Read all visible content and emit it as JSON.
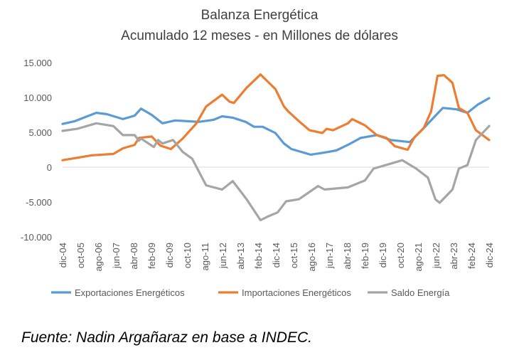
{
  "chart_data": {
    "type": "line",
    "title": "Balanza Energética",
    "subtitle": "Acumulado 12 meses - en Millones de dólares",
    "xlabel": "",
    "ylabel": "",
    "ylim": [
      -10000,
      15000
    ],
    "xlim": [
      2004.92,
      2024.92
    ],
    "yticks": [
      {
        "v": 15000,
        "label": "15.000"
      },
      {
        "v": 10000,
        "label": "10.000"
      },
      {
        "v": 5000,
        "label": "5.000"
      },
      {
        "v": 0,
        "label": "0"
      },
      {
        "v": -5000,
        "label": "-5.000"
      },
      {
        "v": -10000,
        "label": "-10.000"
      }
    ],
    "xtick_labels": [
      "dic-04",
      "oct-05",
      "ago-06",
      "jun-07",
      "abr-08",
      "feb-09",
      "dic-09",
      "oct-10",
      "ago-11",
      "jun-12",
      "abr-13",
      "feb-14",
      "dic-14",
      "oct-15",
      "ago-16",
      "jun-17",
      "abr-18",
      "feb-19",
      "dic-19",
      "oct-20",
      "ago-21",
      "jun-22",
      "abr-23",
      "feb-24",
      "dic-24"
    ],
    "grid": false,
    "legend_position": "bottom",
    "series": [
      {
        "name": "Exportaciones Energéticos",
        "color": "#5B9BD5",
        "points": [
          [
            2004.92,
            6200
          ],
          [
            2005.5,
            6600
          ],
          [
            2006.0,
            7200
          ],
          [
            2006.5,
            7800
          ],
          [
            2007.0,
            7600
          ],
          [
            2007.75,
            6900
          ],
          [
            2008.3,
            7400
          ],
          [
            2008.6,
            8400
          ],
          [
            2009.1,
            7500
          ],
          [
            2009.6,
            6300
          ],
          [
            2010.2,
            6700
          ],
          [
            2011.3,
            6500
          ],
          [
            2012.0,
            6800
          ],
          [
            2012.4,
            7300
          ],
          [
            2012.9,
            7100
          ],
          [
            2013.5,
            6500
          ],
          [
            2013.9,
            5800
          ],
          [
            2014.3,
            5800
          ],
          [
            2014.9,
            4900
          ],
          [
            2015.3,
            3400
          ],
          [
            2015.65,
            2600
          ],
          [
            2016.55,
            1800
          ],
          [
            2017.2,
            2100
          ],
          [
            2017.75,
            2400
          ],
          [
            2018.3,
            3200
          ],
          [
            2018.9,
            4200
          ],
          [
            2019.65,
            4600
          ],
          [
            2020.3,
            3900
          ],
          [
            2021.2,
            3600
          ],
          [
            2021.85,
            5600
          ],
          [
            2022.75,
            8500
          ],
          [
            2023.4,
            8300
          ],
          [
            2023.9,
            7800
          ],
          [
            2024.4,
            9000
          ],
          [
            2024.92,
            9900
          ]
        ]
      },
      {
        "name": "Importaciones Energéticos",
        "color": "#ED7D31",
        "points": [
          [
            2004.92,
            1000
          ],
          [
            2005.5,
            1300
          ],
          [
            2006.3,
            1700
          ],
          [
            2007.3,
            1900
          ],
          [
            2007.75,
            2700
          ],
          [
            2008.3,
            3200
          ],
          [
            2008.5,
            4200
          ],
          [
            2009.1,
            4400
          ],
          [
            2009.5,
            3100
          ],
          [
            2010.0,
            2600
          ],
          [
            2010.55,
            4100
          ],
          [
            2011.2,
            6300
          ],
          [
            2011.65,
            8700
          ],
          [
            2012.4,
            10400
          ],
          [
            2012.75,
            9400
          ],
          [
            2012.95,
            9200
          ],
          [
            2013.55,
            11400
          ],
          [
            2014.2,
            13300
          ],
          [
            2014.9,
            11200
          ],
          [
            2015.3,
            8700
          ],
          [
            2015.5,
            8000
          ],
          [
            2016.0,
            6600
          ],
          [
            2016.5,
            5300
          ],
          [
            2017.1,
            4900
          ],
          [
            2017.3,
            5500
          ],
          [
            2017.6,
            5300
          ],
          [
            2018.3,
            6300
          ],
          [
            2018.5,
            6900
          ],
          [
            2019.1,
            6000
          ],
          [
            2019.65,
            4600
          ],
          [
            2020.1,
            4200
          ],
          [
            2020.5,
            3000
          ],
          [
            2021.1,
            2500
          ],
          [
            2021.4,
            4200
          ],
          [
            2021.85,
            5600
          ],
          [
            2022.2,
            8000
          ],
          [
            2022.5,
            13100
          ],
          [
            2022.8,
            13200
          ],
          [
            2023.2,
            12100
          ],
          [
            2023.5,
            8500
          ],
          [
            2023.9,
            7800
          ],
          [
            2024.3,
            5300
          ],
          [
            2024.92,
            3900
          ]
        ]
      },
      {
        "name": "Saldo Energía",
        "color": "#A5A5A5",
        "points": [
          [
            2004.92,
            5200
          ],
          [
            2005.6,
            5500
          ],
          [
            2006.5,
            6300
          ],
          [
            2007.3,
            5900
          ],
          [
            2007.75,
            4600
          ],
          [
            2008.3,
            4600
          ],
          [
            2008.5,
            3800
          ],
          [
            2008.6,
            4100
          ],
          [
            2009.2,
            2900
          ],
          [
            2009.4,
            3900
          ],
          [
            2009.6,
            3400
          ],
          [
            2010.1,
            3900
          ],
          [
            2010.55,
            2200
          ],
          [
            2011.0,
            1200
          ],
          [
            2011.65,
            -2600
          ],
          [
            2012.4,
            -3200
          ],
          [
            2012.9,
            -2000
          ],
          [
            2013.55,
            -4600
          ],
          [
            2014.2,
            -7600
          ],
          [
            2014.6,
            -7000
          ],
          [
            2015.0,
            -6500
          ],
          [
            2015.4,
            -4900
          ],
          [
            2016.0,
            -4600
          ],
          [
            2016.9,
            -2700
          ],
          [
            2017.2,
            -3200
          ],
          [
            2018.3,
            -2900
          ],
          [
            2019.1,
            -1900
          ],
          [
            2019.5,
            -200
          ],
          [
            2020.3,
            500
          ],
          [
            2020.85,
            1000
          ],
          [
            2021.5,
            -200
          ],
          [
            2022.05,
            -1500
          ],
          [
            2022.4,
            -4600
          ],
          [
            2022.6,
            -5100
          ],
          [
            2023.2,
            -3200
          ],
          [
            2023.5,
            -200
          ],
          [
            2023.9,
            300
          ],
          [
            2024.3,
            3900
          ],
          [
            2024.92,
            5900
          ]
        ]
      }
    ]
  },
  "source": "Fuente: Nadin Argañaraz en base a INDEC."
}
